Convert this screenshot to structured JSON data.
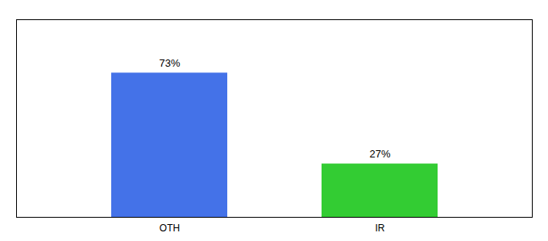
{
  "chart_data": {
    "type": "bar",
    "categories": [
      "OTH",
      "IR"
    ],
    "values": [
      73,
      27
    ],
    "value_labels": [
      "73%",
      "27%"
    ],
    "colors": [
      "#4472e8",
      "#33cc33"
    ],
    "ylim": [
      0,
      100
    ],
    "data_labels": true,
    "tick_labels": "x"
  }
}
